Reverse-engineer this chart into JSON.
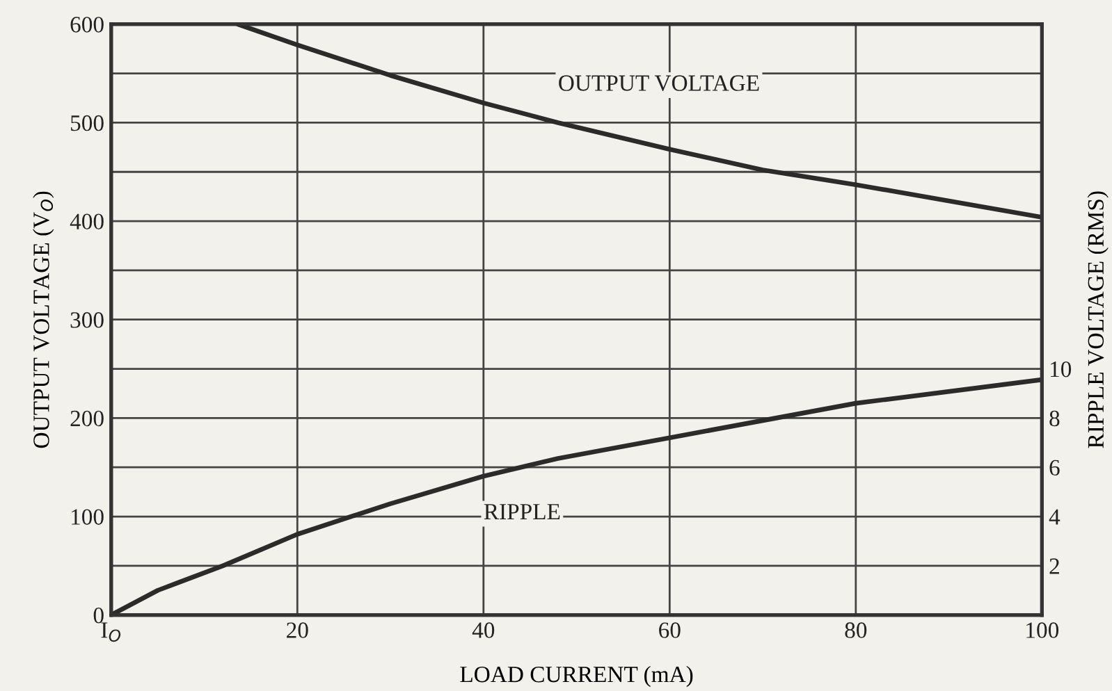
{
  "chart_data": {
    "type": "line",
    "xlabel": "LOAD CURRENT (mA)",
    "ylabel": "OUTPUT VOLTAGE (V$_{O}$)",
    "y2label": "RIPPLE VOLTAGE (RMS)",
    "xlim": [
      0,
      100
    ],
    "xticks": [
      {
        "value": 0,
        "label": "I$_{O}$"
      },
      20,
      40,
      60,
      80,
      100
    ],
    "ylim": [
      0,
      600
    ],
    "yticks": [
      0,
      {
        "value": 50,
        "label": null
      },
      100,
      {
        "value": 150,
        "label": null
      },
      200,
      {
        "value": 250,
        "label": null
      },
      300,
      {
        "value": 350,
        "label": null
      },
      400,
      {
        "value": 450,
        "label": null
      },
      500,
      {
        "value": 550,
        "label": null
      },
      600
    ],
    "y2lim": [
      0,
      24
    ],
    "y2ticks": [
      2,
      4,
      6,
      8,
      10
    ],
    "grid": true,
    "legend": false,
    "series": [
      {
        "name": "OUTPUT VOLTAGE",
        "color": "#2b2b2b",
        "x": [
          13.6,
          20,
          30,
          40,
          48,
          60,
          70,
          80,
          100
        ],
        "values": [
          600,
          579,
          548,
          520,
          500,
          473,
          452,
          437,
          404
        ]
      },
      {
        "name": "RIPPLE",
        "color": "#2b2b2b",
        "axis": "y2",
        "x": [
          0,
          5,
          12,
          20,
          30,
          40,
          48,
          60,
          80,
          100
        ],
        "values": [
          0,
          1.0,
          2.0,
          3.28,
          4.52,
          5.64,
          6.36,
          7.2,
          8.6,
          9.56
        ]
      }
    ]
  }
}
